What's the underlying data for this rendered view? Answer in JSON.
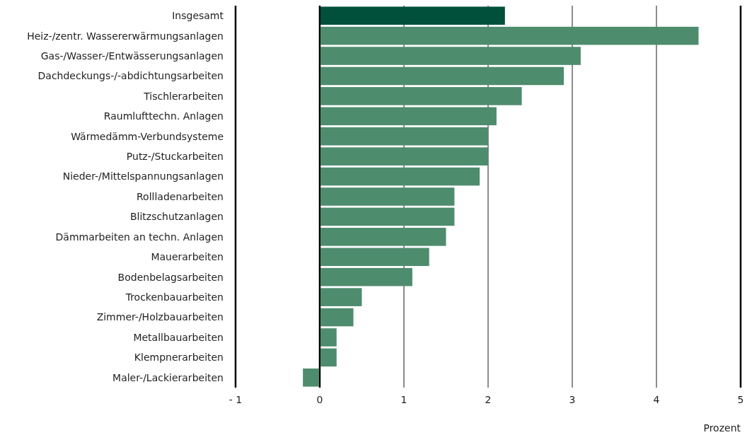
{
  "chart_data": {
    "type": "bar",
    "orientation": "horizontal",
    "xlabel": "Prozent",
    "categories": [
      "Insgesamt",
      "Heiz-/zentr. Wassererwärmungsanlagen",
      "Gas-/Wasser-/Entwässerungsanlagen",
      "Dachdeckungs-/-abdichtungsarbeiten",
      "Tischlerarbeiten",
      "Raumlufttechn. Anlagen",
      "Wärmedämm-Verbundsysteme",
      "Putz-/Stuckarbeiten",
      "Nieder-/Mittelspannungsanlagen",
      "Rollladenarbeiten",
      "Blitzschutzanlagen",
      "Dämmarbeiten an techn. Anlagen",
      "Mauerarbeiten",
      "Bodenbelagsarbeiten",
      "Trockenbauarbeiten",
      "Zimmer-/Holzbauarbeiten",
      "Metallbauarbeiten",
      "Klempnerarbeiten",
      "Maler-/Lackierarbeiten"
    ],
    "values": [
      2.2,
      4.5,
      3.1,
      2.9,
      2.4,
      2.1,
      2.0,
      2.0,
      1.9,
      1.6,
      1.6,
      1.5,
      1.3,
      1.1,
      0.5,
      0.4,
      0.2,
      0.2,
      -0.2
    ],
    "colors": [
      "#00503c",
      "#4e8c6e",
      "#4e8c6e",
      "#4e8c6e",
      "#4e8c6e",
      "#4e8c6e",
      "#4e8c6e",
      "#4e8c6e",
      "#4e8c6e",
      "#4e8c6e",
      "#4e8c6e",
      "#4e8c6e",
      "#4e8c6e",
      "#4e8c6e",
      "#4e8c6e",
      "#4e8c6e",
      "#4e8c6e",
      "#4e8c6e",
      "#4e8c6e"
    ],
    "xlim": [
      -1,
      5
    ],
    "xticks": [
      {
        "value": -1,
        "label": "- 1"
      },
      0,
      1,
      2,
      3,
      4,
      5
    ],
    "grid": "x"
  }
}
